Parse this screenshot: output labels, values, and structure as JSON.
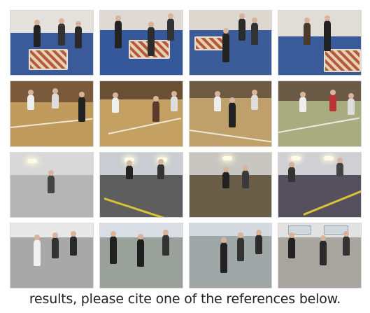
{
  "caption": "results, please cite one of the references below.",
  "rows": [
    {
      "scene": "indoor-room-with-rug"
    },
    {
      "scene": "basketball-court"
    },
    {
      "scene": "underground-parking"
    },
    {
      "scene": "outdoor-terrace"
    }
  ]
}
